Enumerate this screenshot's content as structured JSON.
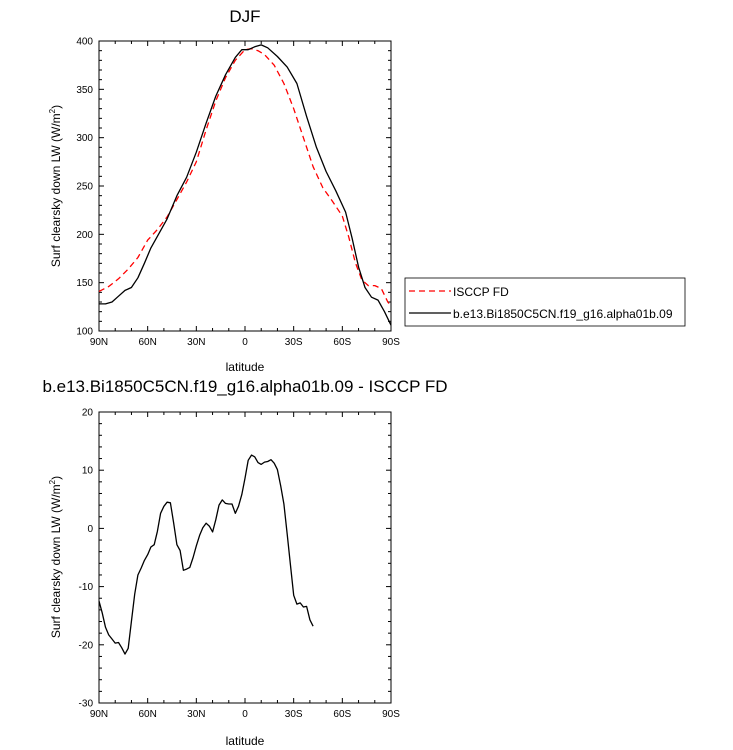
{
  "chart_data": [
    {
      "type": "line",
      "title": "DJF",
      "xlabel": "latitude",
      "ylabel_main": "Surf clearsky down LW (W/m",
      "ylabel_sup": "2",
      "ylabel_close": ")",
      "xlim": [
        90,
        -90
      ],
      "ylim": [
        100,
        400
      ],
      "xticks": [
        90,
        60,
        30,
        0,
        -30,
        -60,
        -90
      ],
      "xtick_labels": [
        "90N",
        "60N",
        "30N",
        "0",
        "30S",
        "60S",
        "90S"
      ],
      "yticks": [
        100,
        150,
        200,
        250,
        300,
        350,
        400
      ],
      "ytick_labels": [
        "100",
        "150",
        "200",
        "250",
        "300",
        "350",
        "400"
      ],
      "legend": {
        "position": "right"
      },
      "series": [
        {
          "name": "ISCCP FD",
          "color": "#ff0000",
          "dash": "dashed",
          "points": [
            [
              90,
              141
            ],
            [
              84,
              146
            ],
            [
              78,
              154
            ],
            [
              72,
              164
            ],
            [
              66,
              176
            ],
            [
              60,
              194
            ],
            [
              54,
              205
            ],
            [
              48,
              218
            ],
            [
              42,
              236
            ],
            [
              36,
              254
            ],
            [
              30,
              275
            ],
            [
              24,
              308
            ],
            [
              18,
              338
            ],
            [
              12,
              362
            ],
            [
              6,
              380
            ],
            [
              0,
              391
            ],
            [
              -4,
              392
            ],
            [
              -8,
              390
            ],
            [
              -12,
              386
            ],
            [
              -18,
              375
            ],
            [
              -24,
              356
            ],
            [
              -30,
              330
            ],
            [
              -36,
              300
            ],
            [
              -42,
              270
            ],
            [
              -48,
              248
            ],
            [
              -54,
              234
            ],
            [
              -60,
              219
            ],
            [
              -64,
              197
            ],
            [
              -68,
              171
            ],
            [
              -72,
              153
            ],
            [
              -76,
              147
            ],
            [
              -80,
              147
            ],
            [
              -84,
              144
            ],
            [
              -88,
              130
            ],
            [
              -90,
              126
            ]
          ]
        },
        {
          "name": "b.e13.Bi1850C5CN.f19_g16.alpha01b.09",
          "color": "#000000",
          "dash": "solid",
          "points": [
            [
              90,
              128
            ],
            [
              86,
              128
            ],
            [
              82,
              130
            ],
            [
              78,
              136
            ],
            [
              74,
              142
            ],
            [
              70,
              145
            ],
            [
              66,
              155
            ],
            [
              62,
              170
            ],
            [
              58,
              186
            ],
            [
              54,
              198
            ],
            [
              48,
              216
            ],
            [
              42,
              240
            ],
            [
              36,
              259
            ],
            [
              30,
              285
            ],
            [
              24,
              315
            ],
            [
              18,
              343
            ],
            [
              12,
              365
            ],
            [
              6,
              383
            ],
            [
              2,
              391
            ],
            [
              -2,
              391
            ],
            [
              -6,
              394
            ],
            [
              -10,
              396
            ],
            [
              -14,
              393
            ],
            [
              -20,
              384
            ],
            [
              -26,
              373
            ],
            [
              -32,
              356
            ],
            [
              -38,
              322
            ],
            [
              -44,
              290
            ],
            [
              -50,
              265
            ],
            [
              -56,
              245
            ],
            [
              -62,
              223
            ],
            [
              -66,
              196
            ],
            [
              -70,
              166
            ],
            [
              -74,
              145
            ],
            [
              -78,
              135
            ],
            [
              -82,
              132
            ],
            [
              -86,
              120
            ],
            [
              -90,
              106
            ]
          ]
        }
      ]
    },
    {
      "type": "line",
      "title": "b.e13.Bi1850C5CN.f19_g16.alpha01b.09 - ISCCP FD",
      "xlabel": "latitude",
      "ylabel_main": "Surf clearsky down LW (W/m",
      "ylabel_sup": "2",
      "ylabel_close": ")",
      "xlim": [
        90,
        -90
      ],
      "ylim": [
        -30,
        20
      ],
      "xticks": [
        90,
        60,
        30,
        0,
        -30,
        -60,
        -90
      ],
      "xtick_labels": [
        "90N",
        "60N",
        "30N",
        "0",
        "30S",
        "60S",
        "90S"
      ],
      "yticks": [
        -30,
        -20,
        -10,
        0,
        10,
        20
      ],
      "ytick_labels": [
        "-30",
        "-20",
        "-10",
        "0",
        "10",
        "20"
      ],
      "series": [
        {
          "color": "#000000",
          "dash": "solid",
          "points": [
            [
              90,
              -12.5
            ],
            [
              88,
              -14.5
            ],
            [
              86,
              -17
            ],
            [
              84,
              -18.3
            ],
            [
              82,
              -19
            ],
            [
              80,
              -19.7
            ],
            [
              78,
              -19.6
            ],
            [
              76,
              -20.5
            ],
            [
              74,
              -21.6
            ],
            [
              72,
              -20.6
            ],
            [
              70,
              -16
            ],
            [
              68,
              -11.3
            ],
            [
              66,
              -8
            ],
            [
              64,
              -6.8
            ],
            [
              62,
              -5.5
            ],
            [
              60,
              -4.5
            ],
            [
              58,
              -3.2
            ],
            [
              56,
              -2.8
            ],
            [
              54,
              -0.5
            ],
            [
              52,
              2.6
            ],
            [
              50,
              3.8
            ],
            [
              48,
              4.5
            ],
            [
              46,
              4.4
            ],
            [
              44,
              1
            ],
            [
              42,
              -2.8
            ],
            [
              40,
              -3.8
            ],
            [
              38,
              -7.2
            ],
            [
              36,
              -7
            ],
            [
              34,
              -6.7
            ],
            [
              32,
              -5
            ],
            [
              30,
              -3
            ],
            [
              28,
              -1.2
            ],
            [
              26,
              0.1
            ],
            [
              24,
              0.9
            ],
            [
              22,
              0.4
            ],
            [
              20,
              -0.6
            ],
            [
              18,
              1.5
            ],
            [
              16,
              4
            ],
            [
              14,
              4.9
            ],
            [
              12,
              4.3
            ],
            [
              10,
              4.2
            ],
            [
              8,
              4.2
            ],
            [
              6,
              2.6
            ],
            [
              4,
              3.8
            ],
            [
              2,
              5.8
            ],
            [
              0,
              8.6
            ],
            [
              -2,
              11.7
            ],
            [
              -4,
              12.6
            ],
            [
              -6,
              12.3
            ],
            [
              -8,
              11.3
            ],
            [
              -10,
              11
            ],
            [
              -12,
              11.4
            ],
            [
              -14,
              11.5
            ],
            [
              -16,
              11.8
            ],
            [
              -18,
              11.2
            ],
            [
              -20,
              10.1
            ],
            [
              -22,
              7.3
            ],
            [
              -24,
              4.2
            ],
            [
              -26,
              -1
            ],
            [
              -28,
              -6.2
            ],
            [
              -30,
              -11.5
            ],
            [
              -32,
              -13
            ],
            [
              -34,
              -12.8
            ],
            [
              -36,
              -13.5
            ],
            [
              -38,
              -13.4
            ],
            [
              -40,
              -15.7
            ],
            [
              -42,
              -16.8
            ]
          ]
        }
      ]
    }
  ]
}
